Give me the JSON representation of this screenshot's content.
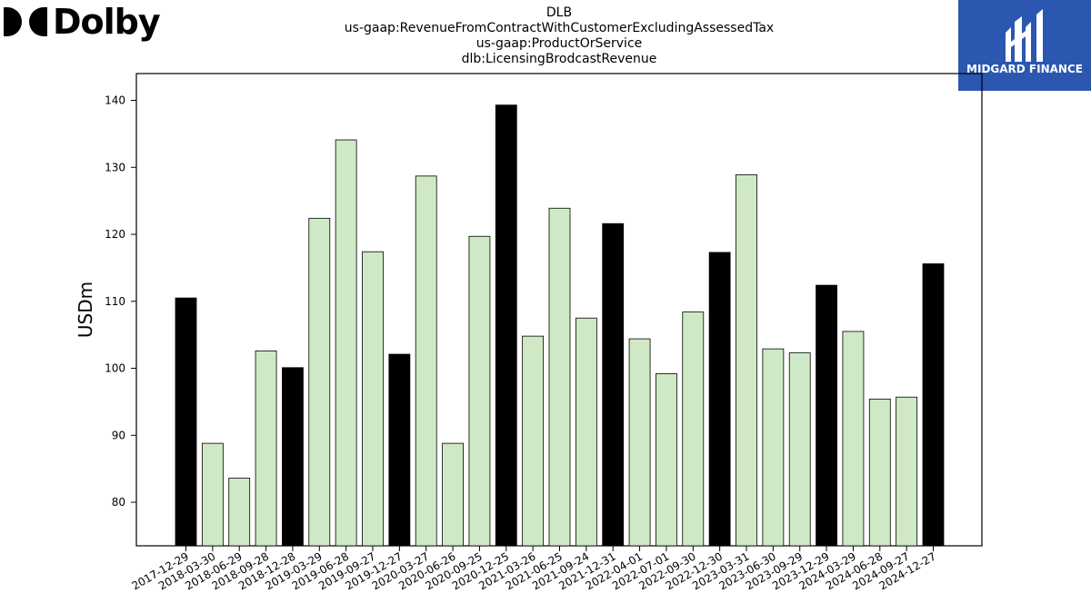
{
  "header": {
    "company_logo_text": "Dolby",
    "title_lines": [
      "DLB",
      "us-gaap:RevenueFromContractWithCustomerExcludingAssessedTax",
      "us-gaap:ProductOrService",
      "dlb:LicensingBrodcastRevenue"
    ],
    "brand_logo_text": "MIDGARD FINANCE"
  },
  "colors": {
    "highlight_bar": "#000000",
    "regular_bar": "#cfe9c6",
    "bar_edge": "#000000",
    "brand_blue": "#2b57b0"
  },
  "chart_data": {
    "type": "bar",
    "ylabel": "USDm",
    "xlabel": "",
    "ylim": [
      73.5,
      144
    ],
    "yticks": [
      80,
      90,
      100,
      110,
      120,
      130,
      140
    ],
    "grid": false,
    "categories": [
      "2017-12-29",
      "2018-03-30",
      "2018-06-29",
      "2018-09-28",
      "2018-12-28",
      "2019-03-29",
      "2019-06-28",
      "2019-09-27",
      "2019-12-27",
      "2020-03-27",
      "2020-06-26",
      "2020-09-25",
      "2020-12-25",
      "2021-03-26",
      "2021-06-25",
      "2021-09-24",
      "2021-12-31",
      "2022-04-01",
      "2022-07-01",
      "2022-09-30",
      "2022-12-30",
      "2023-03-31",
      "2023-06-30",
      "2023-09-29",
      "2023-12-29",
      "2024-03-29",
      "2024-06-28",
      "2024-09-27",
      "2024-12-27"
    ],
    "values": [
      110.5,
      88.8,
      83.6,
      102.6,
      100.1,
      122.4,
      134.1,
      117.4,
      102.1,
      128.7,
      88.8,
      119.7,
      139.3,
      104.8,
      123.9,
      107.5,
      121.6,
      104.4,
      99.2,
      108.4,
      117.3,
      128.9,
      102.9,
      102.3,
      112.4,
      105.5,
      95.4,
      95.7,
      115.6
    ],
    "highlighted": [
      true,
      false,
      false,
      false,
      true,
      false,
      false,
      false,
      true,
      false,
      false,
      false,
      true,
      false,
      false,
      false,
      true,
      false,
      false,
      false,
      true,
      false,
      false,
      false,
      true,
      false,
      false,
      false,
      true
    ]
  }
}
